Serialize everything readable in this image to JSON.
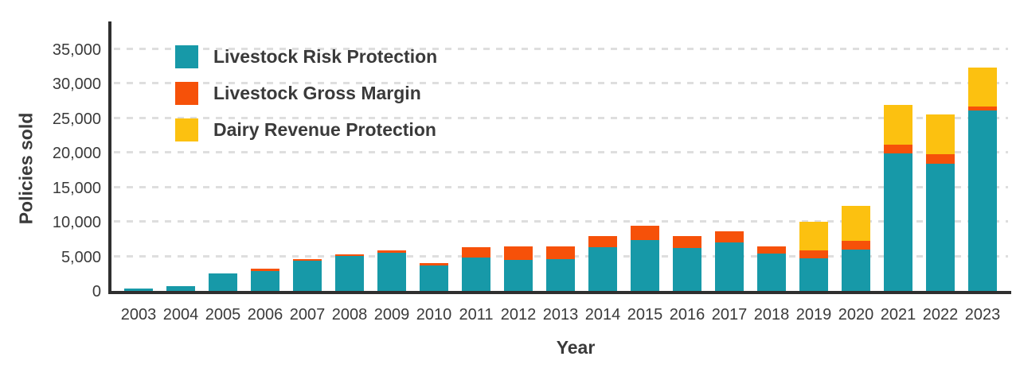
{
  "chart_data": {
    "type": "bar",
    "stacked": true,
    "title": "",
    "xlabel": "Year",
    "ylabel": "Policies sold",
    "ylim": [
      0,
      35000
    ],
    "grid": "horizontal dashed lines every 5000, behind bars",
    "legend_position": "top-left inside plot",
    "categories": [
      "2003",
      "2004",
      "2005",
      "2006",
      "2007",
      "2008",
      "2009",
      "2010",
      "2011",
      "2012",
      "2013",
      "2014",
      "2015",
      "2016",
      "2017",
      "2018",
      "2019",
      "2020",
      "2021",
      "2022",
      "2023"
    ],
    "series": [
      {
        "name": "Livestock Risk Protection",
        "color": "#1799a8",
        "values": [
          350,
          650,
          2500,
          2900,
          4350,
          5100,
          5550,
          3700,
          4800,
          4500,
          4650,
          6300,
          7400,
          6250,
          7000,
          5400,
          4700,
          6000,
          19900,
          18400,
          26100
        ]
      },
      {
        "name": "Livestock Gross Margin",
        "color": "#f65109",
        "values": [
          0,
          0,
          0,
          350,
          250,
          250,
          300,
          350,
          1500,
          2000,
          1800,
          1600,
          2100,
          1650,
          1600,
          1100,
          1200,
          1200,
          1300,
          1400,
          600
        ]
      },
      {
        "name": "Dairy Revenue Protection",
        "color": "#fcc110",
        "values": [
          0,
          0,
          0,
          0,
          0,
          0,
          0,
          0,
          0,
          0,
          0,
          0,
          0,
          0,
          0,
          0,
          4100,
          5100,
          5800,
          5800,
          5600
        ]
      }
    ],
    "y_ticks": [
      {
        "value": 0,
        "label": "0"
      },
      {
        "value": 5000,
        "label": "5,000"
      },
      {
        "value": 10000,
        "label": "10,000"
      },
      {
        "value": 15000,
        "label": "15,000"
      },
      {
        "value": 20000,
        "label": "20,000"
      },
      {
        "value": 25000,
        "label": "25,000"
      },
      {
        "value": 30000,
        "label": "30,000"
      },
      {
        "value": 35000,
        "label": "35,000"
      }
    ]
  },
  "colors": {
    "background": "#ffffff",
    "axis_line": "#2f2f2f",
    "gridline": "#dedede",
    "text": "#3a3a3a"
  }
}
